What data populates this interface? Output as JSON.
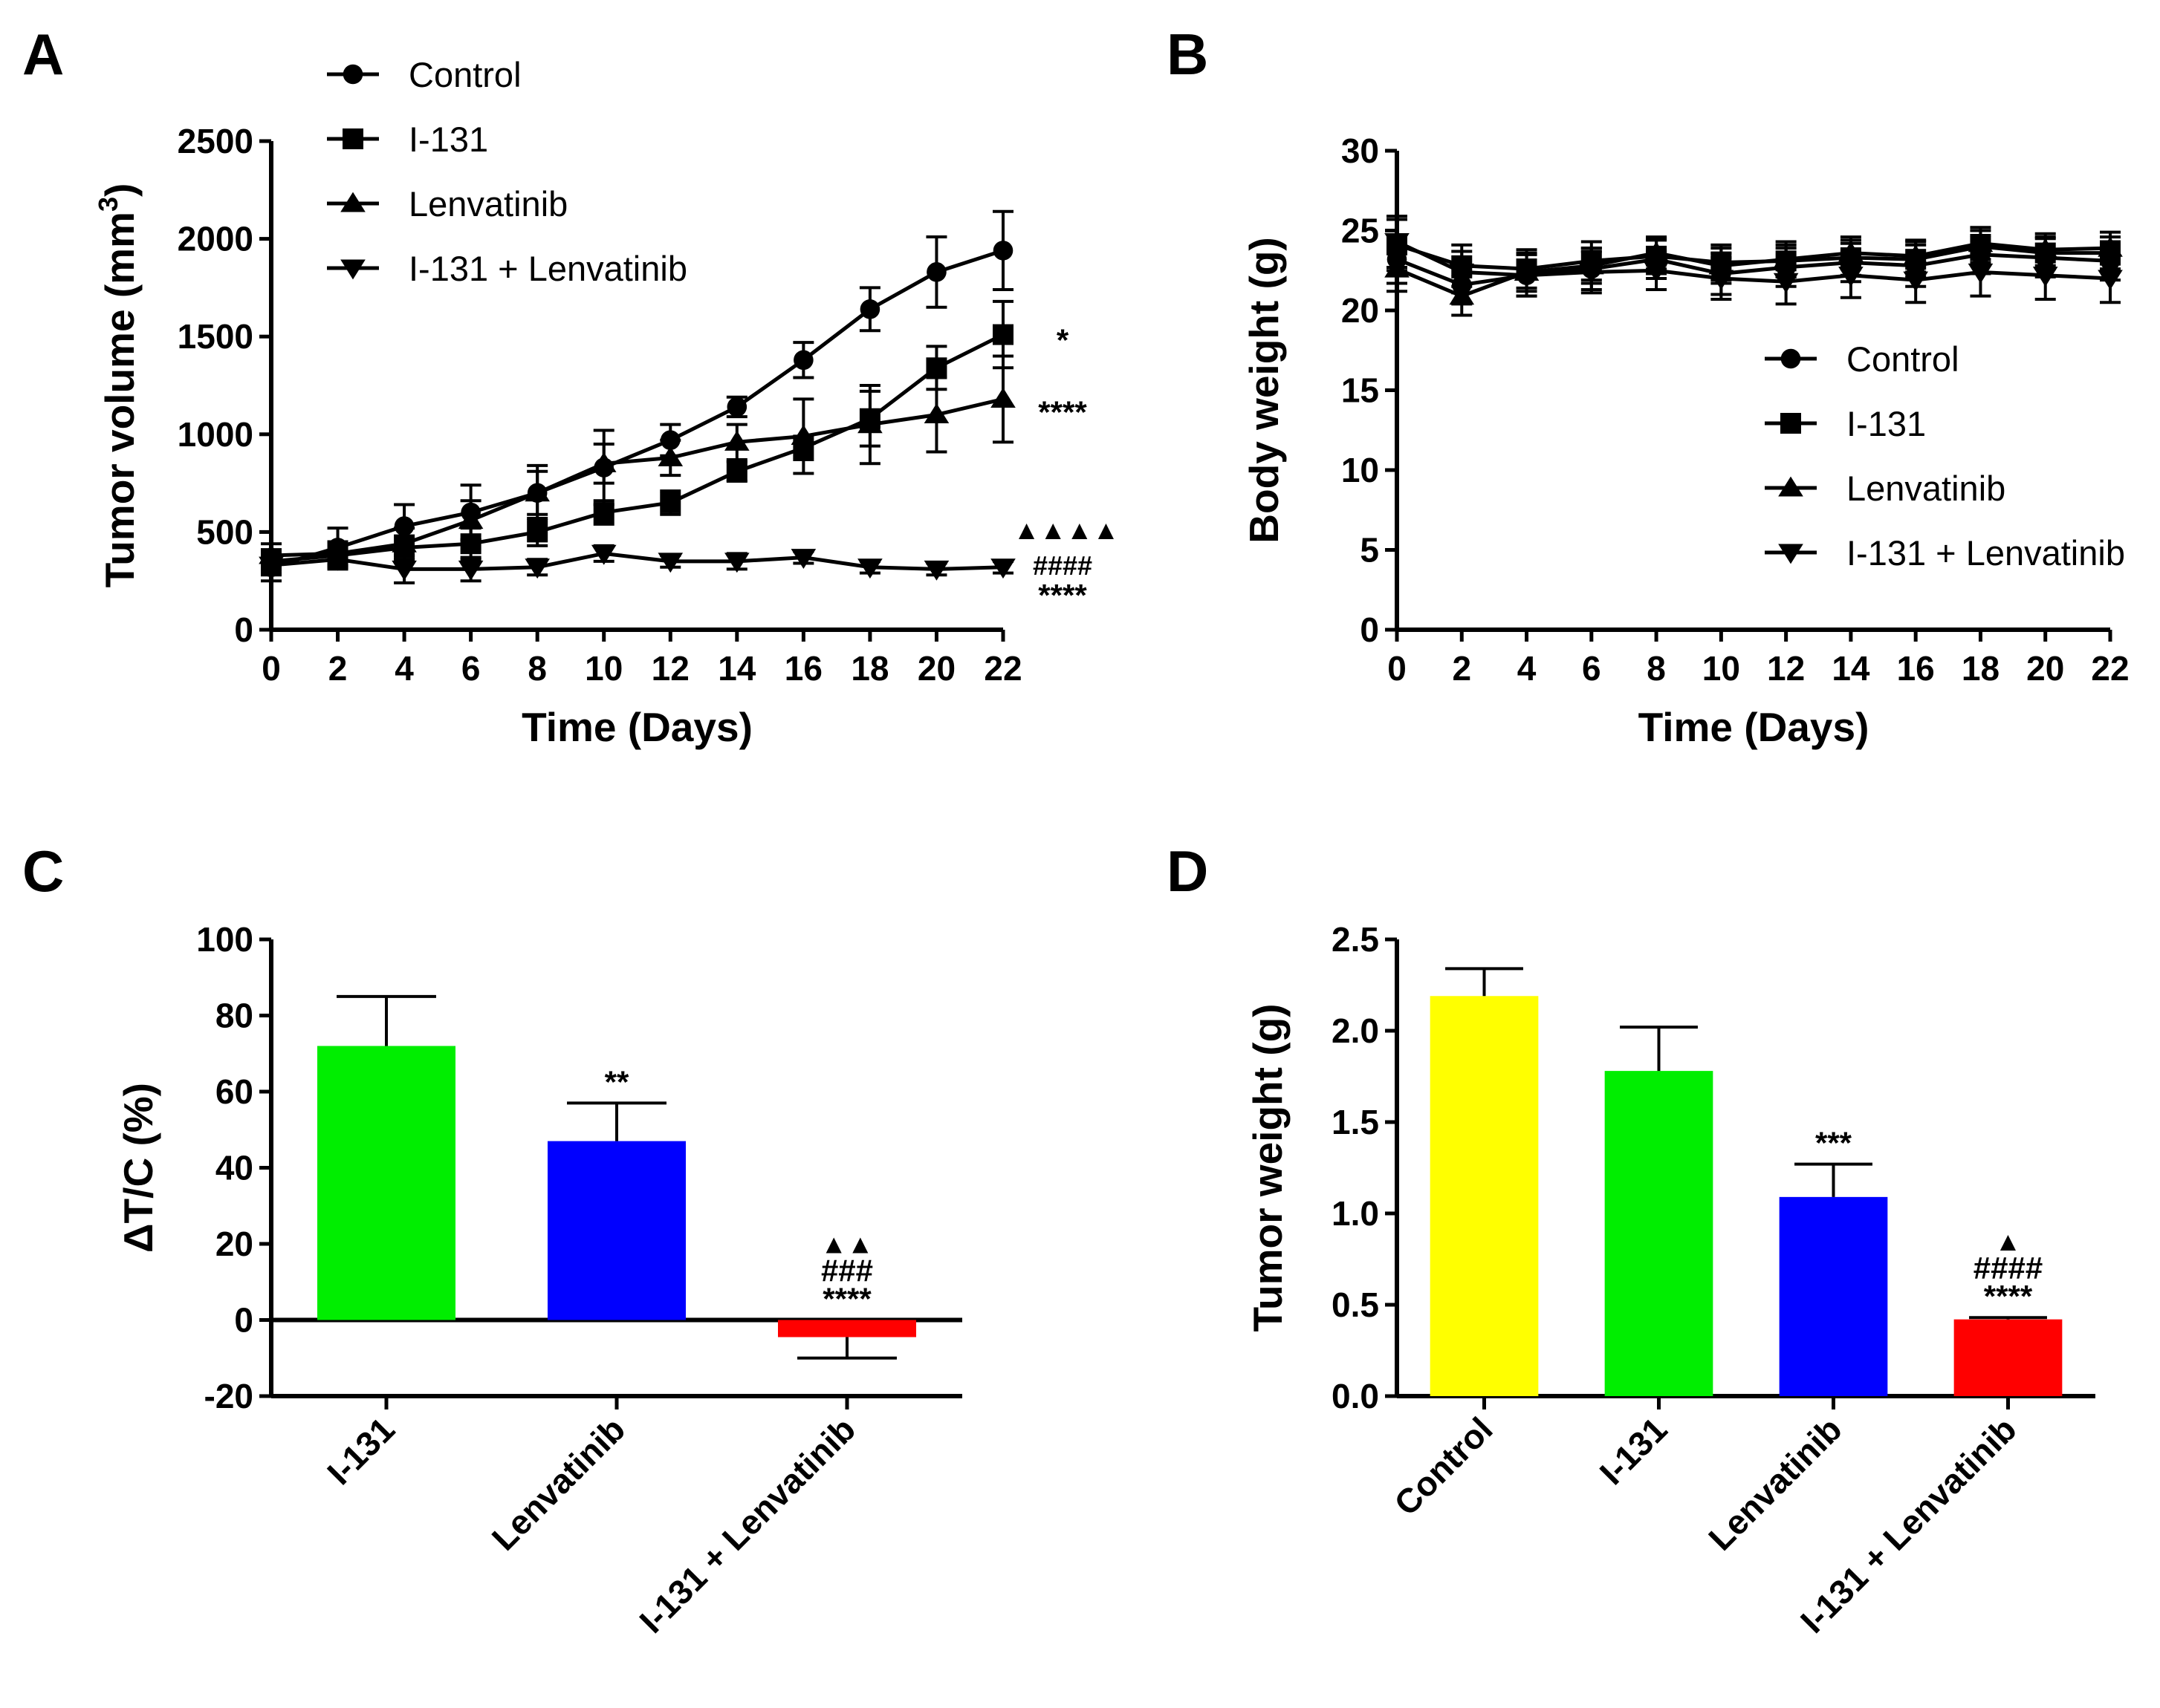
{
  "chart_data": [
    {
      "panel": "A",
      "type": "line",
      "xlabel": "Time (Days)",
      "ylabel": "Tumor volume (mm3)",
      "ylabel_main": "Tumor volume (mm",
      "ylabel_sup": "3",
      "ylabel_close": ")",
      "x": [
        0,
        2,
        4,
        6,
        8,
        10,
        12,
        14,
        16,
        18,
        20,
        22
      ],
      "xlim": [
        0,
        22
      ],
      "ylim": [
        0,
        2500
      ],
      "yticks": [
        0,
        500,
        1000,
        1500,
        2000,
        2500
      ],
      "legend": "top-left",
      "series": [
        {
          "name": "Control",
          "marker": "circle",
          "values": [
            320,
            420,
            530,
            600,
            700,
            830,
            970,
            1140,
            1380,
            1640,
            1830,
            1940
          ],
          "errors": [
            70,
            100,
            110,
            140,
            140,
            190,
            80,
            50,
            90,
            110,
            180,
            200
          ]
        },
        {
          "name": "I-131",
          "marker": "square",
          "values": [
            350,
            380,
            420,
            440,
            500,
            600,
            650,
            810,
            930,
            1080,
            1340,
            1510
          ],
          "errors": [
            60,
            60,
            60,
            80,
            70,
            60,
            60,
            50,
            60,
            140,
            110,
            170
          ]
        },
        {
          "name": "Lenvatinib",
          "marker": "triangle-up",
          "values": [
            380,
            390,
            440,
            560,
            700,
            850,
            880,
            960,
            990,
            1050,
            1100,
            1180
          ],
          "errors": [
            60,
            60,
            80,
            100,
            110,
            100,
            90,
            90,
            190,
            200,
            190,
            220
          ]
        },
        {
          "name": "I-131 + Lenvatinib",
          "marker": "triangle-down",
          "values": [
            330,
            360,
            310,
            310,
            320,
            390,
            350,
            350,
            370,
            320,
            310,
            320
          ],
          "errors": [
            50,
            50,
            70,
            60,
            40,
            40,
            30,
            40,
            30,
            30,
            30,
            30
          ]
        }
      ],
      "annotations": [
        {
          "text": "*",
          "series": "I-131"
        },
        {
          "text": "****",
          "series": "Lenvatinib"
        },
        {
          "text": "▲▲▲▲",
          "series": "I-131 + Lenvatinib"
        },
        {
          "text": "####",
          "series": "I-131 + Lenvatinib"
        },
        {
          "text": "****",
          "series": "I-131 + Lenvatinib"
        }
      ]
    },
    {
      "panel": "B",
      "type": "line",
      "xlabel": "Time (Days)",
      "ylabel": "Body weight (g)",
      "x": [
        0,
        2,
        4,
        6,
        8,
        10,
        12,
        14,
        16,
        18,
        20,
        22
      ],
      "xlim": [
        0,
        22
      ],
      "ylim": [
        0,
        30
      ],
      "yticks": [
        0,
        5,
        10,
        15,
        20,
        25,
        30
      ],
      "legend": "center-right",
      "series": [
        {
          "name": "Control",
          "marker": "circle",
          "values": [
            23.2,
            21.6,
            22.2,
            22.6,
            23.2,
            22.3,
            22.7,
            23.0,
            22.8,
            23.5,
            23.3,
            23.1
          ],
          "errors": [
            1.5,
            1.2,
            1.3,
            1.3,
            1.2,
            1.3,
            1.2,
            1.2,
            1.3,
            1.2,
            1.2,
            1.2
          ]
        },
        {
          "name": "I-131",
          "marker": "square",
          "values": [
            24.1,
            22.8,
            22.6,
            23.1,
            23.4,
            23.0,
            23.1,
            23.3,
            23.2,
            24.0,
            23.6,
            23.6
          ],
          "errors": [
            1.6,
            1.3,
            1.2,
            1.2,
            1.1,
            1.1,
            1.0,
            1.1,
            1.1,
            1.0,
            1.0,
            1.0
          ]
        },
        {
          "name": "Lenvatinib",
          "marker": "triangle-up",
          "values": [
            22.6,
            20.9,
            22.4,
            22.8,
            23.6,
            22.8,
            23.2,
            23.6,
            23.4,
            24.2,
            23.8,
            23.9
          ],
          "errors": [
            1.4,
            1.2,
            1.2,
            1.1,
            1.0,
            1.1,
            1.1,
            1.0,
            1.0,
            1.0,
            1.0,
            1.0
          ]
        },
        {
          "name": "I-131 + Lenvatinib",
          "marker": "triangle-down",
          "values": [
            24.3,
            22.4,
            22.2,
            22.4,
            22.5,
            22.0,
            21.8,
            22.2,
            21.9,
            22.4,
            22.2,
            22.0
          ],
          "errors": [
            1.6,
            1.3,
            1.3,
            1.3,
            1.2,
            1.3,
            1.4,
            1.4,
            1.4,
            1.5,
            1.5,
            1.5
          ]
        }
      ]
    },
    {
      "panel": "C",
      "type": "bar",
      "xlabel": "",
      "ylabel": "ΔT/C (%)",
      "categories": [
        "I-131",
        "Lenvatinib",
        "I-131 + Lenvatinib"
      ],
      "values": [
        72,
        47,
        -4.5
      ],
      "errors": [
        13,
        10,
        5.5
      ],
      "colors": [
        "#00ee00",
        "#0000ff",
        "#ff0000"
      ],
      "ylim": [
        -20,
        100
      ],
      "yticks": [
        -20,
        0,
        20,
        40,
        60,
        80,
        100
      ],
      "annotations": [
        [],
        [
          "**"
        ],
        [
          "▲▲",
          "###",
          "****"
        ]
      ]
    },
    {
      "panel": "D",
      "type": "bar",
      "xlabel": "",
      "ylabel": "Tumor weight (g)",
      "categories": [
        "Control",
        "I-131",
        "Lenvatinib",
        "I-131 + Lenvatinib"
      ],
      "values": [
        2.19,
        1.78,
        1.09,
        0.42
      ],
      "errors": [
        0.15,
        0.24,
        0.18,
        0.01
      ],
      "colors": [
        "#ffff00",
        "#00ee00",
        "#0000ff",
        "#ff0000"
      ],
      "ylim": [
        0,
        2.5
      ],
      "yticks": [
        "0.0",
        "0.5",
        "1.0",
        "1.5",
        "2.0",
        "2.5"
      ],
      "annotations": [
        [],
        [],
        [
          "***"
        ],
        [
          "▲",
          "####",
          "****"
        ]
      ]
    }
  ]
}
